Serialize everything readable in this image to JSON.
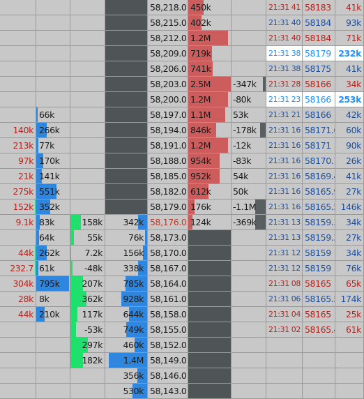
{
  "colors": {
    "background": "#c8c8c8",
    "grid": "#9a9a9a",
    "dark_column": "#4f5556",
    "ask_bar": "#cd5c5c",
    "bid_bar": "#2e86de",
    "green_bar": "#1fe06d",
    "delta_negative_bar": "#5a6061",
    "tape_sell_text": "#b4251f",
    "tape_buy_text": "#1f4f9a",
    "tape_highlight_text": "#1e90ff",
    "price_highlight_text": "#c0392b",
    "neutral_text": "#1a1a1a"
  },
  "rows": [
    {
      "price": "58,218.0",
      "bid_size": "",
      "ask_size": "450k",
      "tape": {
        "time": "21:31 41",
        "price": "58183",
        "size": "41k",
        "side": "sell"
      }
    },
    {
      "price": "58,215.0",
      "bid_size": "",
      "ask_size": "402k",
      "tape": {
        "time": "21:31 40",
        "price": "58184",
        "size": "93k",
        "side": "buy"
      }
    },
    {
      "price": "58,212.0",
      "bid_size": "",
      "ask_size": "1.2M",
      "tape": {
        "time": "21:31 40",
        "price": "58184",
        "size": "71k",
        "side": "sell"
      }
    },
    {
      "price": "58,209.0",
      "bid_size": "",
      "ask_size": "719k",
      "tape": {
        "time": "21:31 38",
        "price": "58179",
        "size": "232k",
        "side": "buy",
        "highlight": true
      }
    },
    {
      "price": "58,206.0",
      "bid_size": "",
      "ask_size": "741k",
      "tape": {
        "time": "21:31 38",
        "price": "58175",
        "size": "41k",
        "side": "buy"
      }
    },
    {
      "price": "58,203.0",
      "bid_size": "",
      "ask_size": "2.5M",
      "ask_delta": "-347k",
      "tape": {
        "time": "21:31 28",
        "price": "58166",
        "size": "34k",
        "side": "sell"
      }
    },
    {
      "price": "58,200.0",
      "bid_size": "",
      "ask_size": "1.2M",
      "ask_delta": "-80k",
      "tape": {
        "time": "21:31 23",
        "price": "58166",
        "size": "253k",
        "side": "buy",
        "highlight": true
      }
    },
    {
      "bid_delta": "",
      "bid_total": "66k",
      "price": "58,197.0",
      "bid_size": "",
      "ask_size": "1.1M",
      "ask_delta": "53k",
      "tape": {
        "time": "21:31 21",
        "price": "58166",
        "size": "42k",
        "side": "buy"
      }
    },
    {
      "bid_delta": "140k",
      "bid_total": "266k",
      "price": "58,194.0",
      "bid_size": "",
      "ask_size": "846k",
      "ask_delta": "-178k",
      "tape": {
        "time": "21:31 16",
        "price": "58171.6",
        "size": "60k",
        "side": "buy"
      }
    },
    {
      "bid_delta": "213k",
      "bid_total": "77k",
      "price": "58,191.0",
      "bid_size": "",
      "ask_size": "1.2M",
      "ask_delta": "-12k",
      "tape": {
        "time": "21:31 16",
        "price": "58171",
        "size": "90k",
        "side": "buy"
      }
    },
    {
      "bid_delta": "97k",
      "bid_total": "170k",
      "price": "58,188.0",
      "bid_size": "",
      "ask_size": "954k",
      "ask_delta": "-83k",
      "tape": {
        "time": "21:31 16",
        "price": "58170.1",
        "size": "26k",
        "side": "buy"
      }
    },
    {
      "bid_delta": "21k",
      "bid_total": "141k",
      "price": "58,185.0",
      "bid_size": "",
      "ask_size": "952k",
      "ask_delta": "54k",
      "tape": {
        "time": "21:31 16",
        "price": "58169.4",
        "size": "41k",
        "side": "buy"
      }
    },
    {
      "bid_delta": "275k",
      "bid_total": "551k",
      "price": "58,182.0",
      "bid_size": "",
      "ask_size": "612k",
      "ask_delta": "50k",
      "tape": {
        "time": "21:31 16",
        "price": "58165.9",
        "size": "27k",
        "side": "buy"
      }
    },
    {
      "bid_delta": "152k",
      "bid_total": "352k",
      "price": "58,179.0",
      "bid_size": "",
      "ask_size": "176k",
      "ask_delta": "-1.1M",
      "tape": {
        "time": "21:31 16",
        "price": "58165.5",
        "size": "146k",
        "side": "buy"
      }
    },
    {
      "bid_delta": "9.1k",
      "bid_total": "83k",
      "green": "158k",
      "bid_size": "342k",
      "price": "58,176.0",
      "ask_size": "124k",
      "ask_delta": "-369k",
      "tape": {
        "time": "21:31 13",
        "price": "58159.3",
        "size": "34k",
        "side": "buy"
      }
    },
    {
      "bid_delta": "",
      "bid_total": "64k",
      "green": "55k",
      "bid_size": "76k",
      "price": "58,173.0",
      "tape": {
        "time": "21:31 13",
        "price": "58159.3",
        "size": "27k",
        "side": "buy"
      }
    },
    {
      "bid_delta": "44k",
      "bid_total": "262k",
      "green": "7.2k",
      "bid_size": "156k",
      "price": "58,170.0",
      "tape": {
        "time": "21:31 12",
        "price": "58159",
        "size": "34k",
        "side": "buy"
      }
    },
    {
      "bid_delta": "232.7",
      "bid_total": "61k",
      "green": "-48k",
      "bid_size": "338k",
      "price": "58,167.0",
      "tape": {
        "time": "21:31 12",
        "price": "58159",
        "size": "76k",
        "side": "buy"
      }
    },
    {
      "bid_delta": "304k",
      "bid_total": "795k",
      "green": "207k",
      "bid_size": "785k",
      "price": "58,164.0",
      "tape": {
        "time": "21:31 08",
        "price": "58165",
        "size": "65k",
        "side": "sell"
      }
    },
    {
      "bid_delta": "28k",
      "bid_total": "8k",
      "green": "362k",
      "bid_size": "928k",
      "price": "58,161.0",
      "tape": {
        "time": "21:31 06",
        "price": "58165.5",
        "size": "174k",
        "side": "buy"
      }
    },
    {
      "bid_delta": "44k",
      "bid_total": "210k",
      "green": "117k",
      "bid_size": "644k",
      "price": "58,158.0",
      "tape": {
        "time": "21:31 04",
        "price": "58165",
        "size": "25k",
        "side": "sell"
      }
    },
    {
      "bid_delta": "",
      "bid_total": "",
      "green": "-53k",
      "bid_size": "749k",
      "price": "58,155.0",
      "tape": {
        "time": "21:31 02",
        "price": "58165.4",
        "size": "61k",
        "side": "sell"
      }
    },
    {
      "bid_delta": "",
      "bid_total": "",
      "green": "297k",
      "bid_size": "460k",
      "price": "58,152.0"
    },
    {
      "bid_delta": "",
      "bid_total": "",
      "green": "182k",
      "bid_size": "1.4M",
      "price": "58,149.0"
    },
    {
      "bid_delta": "",
      "bid_total": "",
      "green": "",
      "bid_size": "356k",
      "price": "58,146.0"
    },
    {
      "bid_delta": "",
      "bid_total": "",
      "green": "",
      "bid_size": "530k",
      "price": "58,143.0"
    }
  ],
  "bar_levels": {
    "ask": [
      0.35,
      0.31,
      0.92,
      0.55,
      0.57,
      1.0,
      0.92,
      0.85,
      0.65,
      0.92,
      0.73,
      0.73,
      0.47,
      0.14,
      0.1
    ],
    "ask_delta_dark": [
      0,
      0,
      0,
      0,
      0,
      0.08,
      0,
      0,
      0.15,
      0,
      0,
      0,
      0,
      0.3,
      0.3
    ],
    "bid_total": [
      0,
      0,
      0,
      0,
      0,
      0,
      0,
      0.05,
      0.3,
      0.06,
      0.2,
      0.17,
      0.6,
      0.4,
      0.1,
      0.08,
      0.3,
      0.07,
      0.95,
      0.01,
      0.25,
      0,
      0,
      0,
      0,
      0
    ],
    "green": [
      0,
      0,
      0,
      0,
      0,
      0,
      0,
      0,
      0,
      0,
      0,
      0,
      0,
      0,
      0.3,
      0.1,
      0.02,
      0.06,
      0.35,
      0.45,
      0.2,
      0.15,
      0.5,
      0.35,
      0,
      0
    ],
    "bid": [
      0,
      0,
      0,
      0,
      0,
      0,
      0,
      0,
      0,
      0,
      0,
      0,
      0,
      0,
      0.22,
      0.05,
      0.1,
      0.22,
      0.51,
      0.6,
      0.42,
      0.49,
      0.3,
      0.9,
      0.23,
      0.34
    ]
  }
}
